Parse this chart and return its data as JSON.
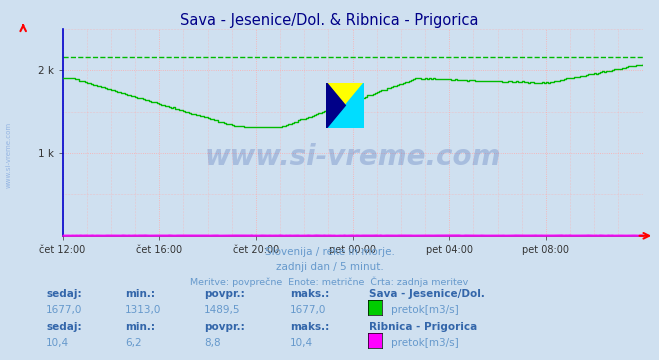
{
  "title": "Sava - Jesenice/Dol. & Ribnica - Prigorica",
  "bg_color": "#cfe0f0",
  "plot_bg_color": "#cfe0f0",
  "grid_color": "#ffaaaa",
  "line1_color": "#00bb00",
  "line2_color": "#ff00ff",
  "dashed_line_color": "#00bb00",
  "xaxis_color": "#cc00cc",
  "yaxis_color": "#0000cc",
  "tick_labels": [
    "čet 12:00",
    "čet 16:00",
    "čet 20:00",
    "pet 00:00",
    "pet 04:00",
    "pet 08:00"
  ],
  "tick_positions": [
    0,
    48,
    96,
    144,
    192,
    240
  ],
  "ytick_labels": [
    "1 k",
    "2 k"
  ],
  "ytick_positions": [
    1000,
    2000
  ],
  "ylim": [
    0,
    2500
  ],
  "xlim": [
    0,
    288
  ],
  "subtitle1": "Slovenija / reke in morje.",
  "subtitle2": "zadnji dan / 5 minut.",
  "subtitle3": "Meritve: povprečne  Enote: metrične  Črta: zadnja meritev",
  "watermark": "www.si-vreme.com",
  "station1_name": "Sava - Jesenice/Dol.",
  "station1_sedaj": "1677,0",
  "station1_min": "1313,0",
  "station1_povpr": "1489,5",
  "station1_maks": "1677,0",
  "station1_unit": "pretok[m3/s]",
  "station1_color": "#00cc00",
  "station2_name": "Ribnica - Prigorica",
  "station2_sedaj": "10,4",
  "station2_min": "6,2",
  "station2_povpr": "8,8",
  "station2_maks": "10,4",
  "station2_unit": "pretok[m3/s]",
  "station2_color": "#ff00ff",
  "dashed_value": 2160,
  "text_color": "#6699cc",
  "label_bold_color": "#3366aa",
  "watermark_color": "#3355aa"
}
